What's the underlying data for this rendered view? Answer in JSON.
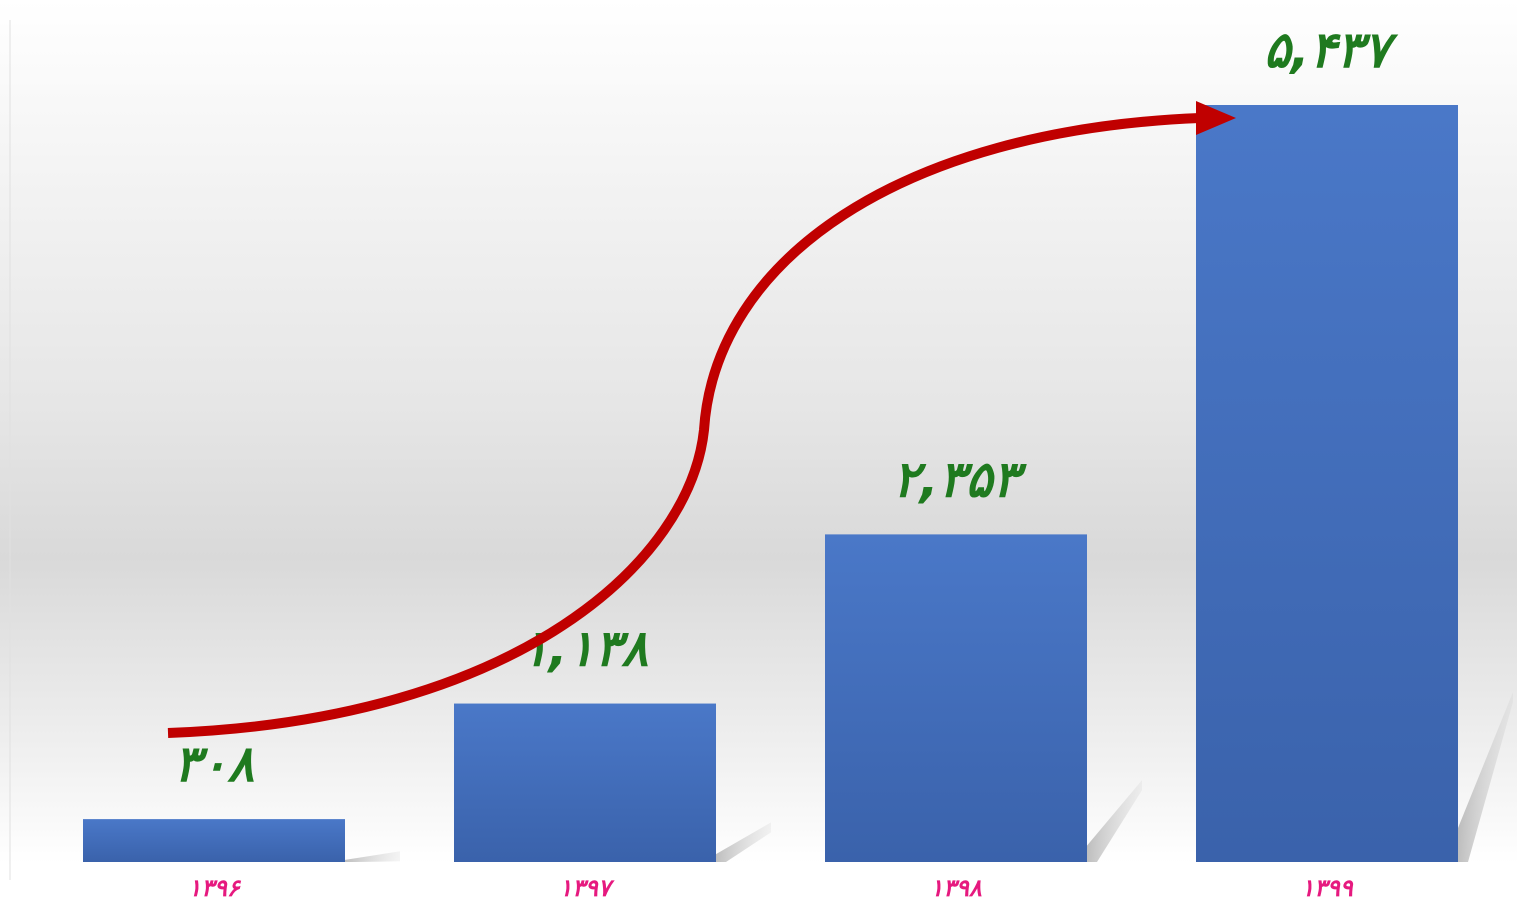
{
  "chart_data": {
    "type": "bar",
    "categories": [
      "۱۳۹۶",
      "۱۳۹۷",
      "۱۳۹۸",
      "۱۳۹۹"
    ],
    "values": [
      308,
      1138,
      2353,
      5437
    ],
    "data_labels": [
      "۳۰۸",
      "۱,۱۳۸",
      "۲,۳۵۳",
      "۵,۴۳۷"
    ],
    "title": "",
    "xlabel": "",
    "ylabel": "",
    "ylim": [
      0,
      6000
    ],
    "grid": false,
    "legend": "none",
    "colors": {
      "bar": "#4472c4",
      "bar_dark": "#3a62ab",
      "value_label": "#1f7a1f",
      "category_label": "#e6197f",
      "arrow": "#c00000"
    }
  }
}
